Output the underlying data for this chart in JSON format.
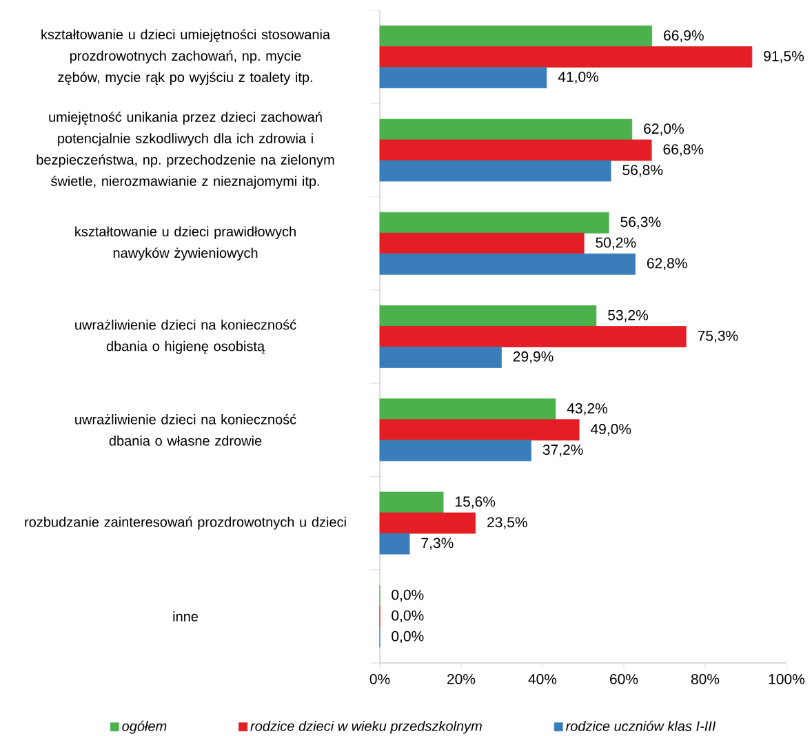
{
  "chart_data": {
    "type": "bar",
    "orientation": "horizontal",
    "categories": [
      "kształtowanie u dzieci umiejętności stosowania prozdrowotnych zachowań, np. mycie zębów, mycie rąk po wyjściu z toalety itp.",
      "umiejętność unikania przez dzieci zachowań potencjalnie szkodliwych dla ich zdrowia i bezpieczeństwa, np. przechodzenie na zielonym świetle, nierozmawianie z nieznajomymi itp.",
      "kształtowanie u dzieci prawidłowych nawyków żywieniowych",
      "uwrażliwienie dzieci na konieczność dbania o higienę osobistą",
      "uwrażliwienie dzieci na konieczność dbania o własne zdrowie",
      "rozbudzanie zainteresowań prozdrowotnych u dzieci",
      "inne"
    ],
    "series": [
      {
        "name": "ogółem",
        "color": "#4cb04c",
        "values": [
          66.9,
          62.0,
          56.3,
          53.2,
          43.2,
          15.6,
          0.0
        ],
        "value_labels": [
          "66,9%",
          "62,0%",
          "56,3%",
          "53,2%",
          "43,2%",
          "15,6%",
          "0,0%"
        ]
      },
      {
        "name": "rodzice dzieci w wieku przedszkolnym",
        "color": "#e31e24",
        "values": [
          91.5,
          66.8,
          50.2,
          75.3,
          49.0,
          23.5,
          0.0
        ],
        "value_labels": [
          "91,5%",
          "66,8%",
          "50,2%",
          "75,3%",
          "49,0%",
          "23,5%",
          "0,0%"
        ]
      },
      {
        "name": "rodzice uczniów klas I-III",
        "color": "#3a7dbb",
        "values": [
          41.0,
          56.8,
          62.8,
          29.9,
          37.2,
          7.3,
          0.0
        ],
        "value_labels": [
          "41,0%",
          "56,8%",
          "62,8%",
          "29,9%",
          "37,2%",
          "7,3%",
          "0,0%"
        ]
      }
    ],
    "xlim": [
      0,
      100
    ],
    "xticks": [
      {
        "value": 0,
        "label": "0%"
      },
      {
        "value": 20,
        "label": "20%"
      },
      {
        "value": 40,
        "label": "40%"
      },
      {
        "value": 60,
        "label": "60%"
      },
      {
        "value": 80,
        "label": "80%"
      },
      {
        "value": 100,
        "label": "100%"
      }
    ],
    "legend": "bottom"
  }
}
